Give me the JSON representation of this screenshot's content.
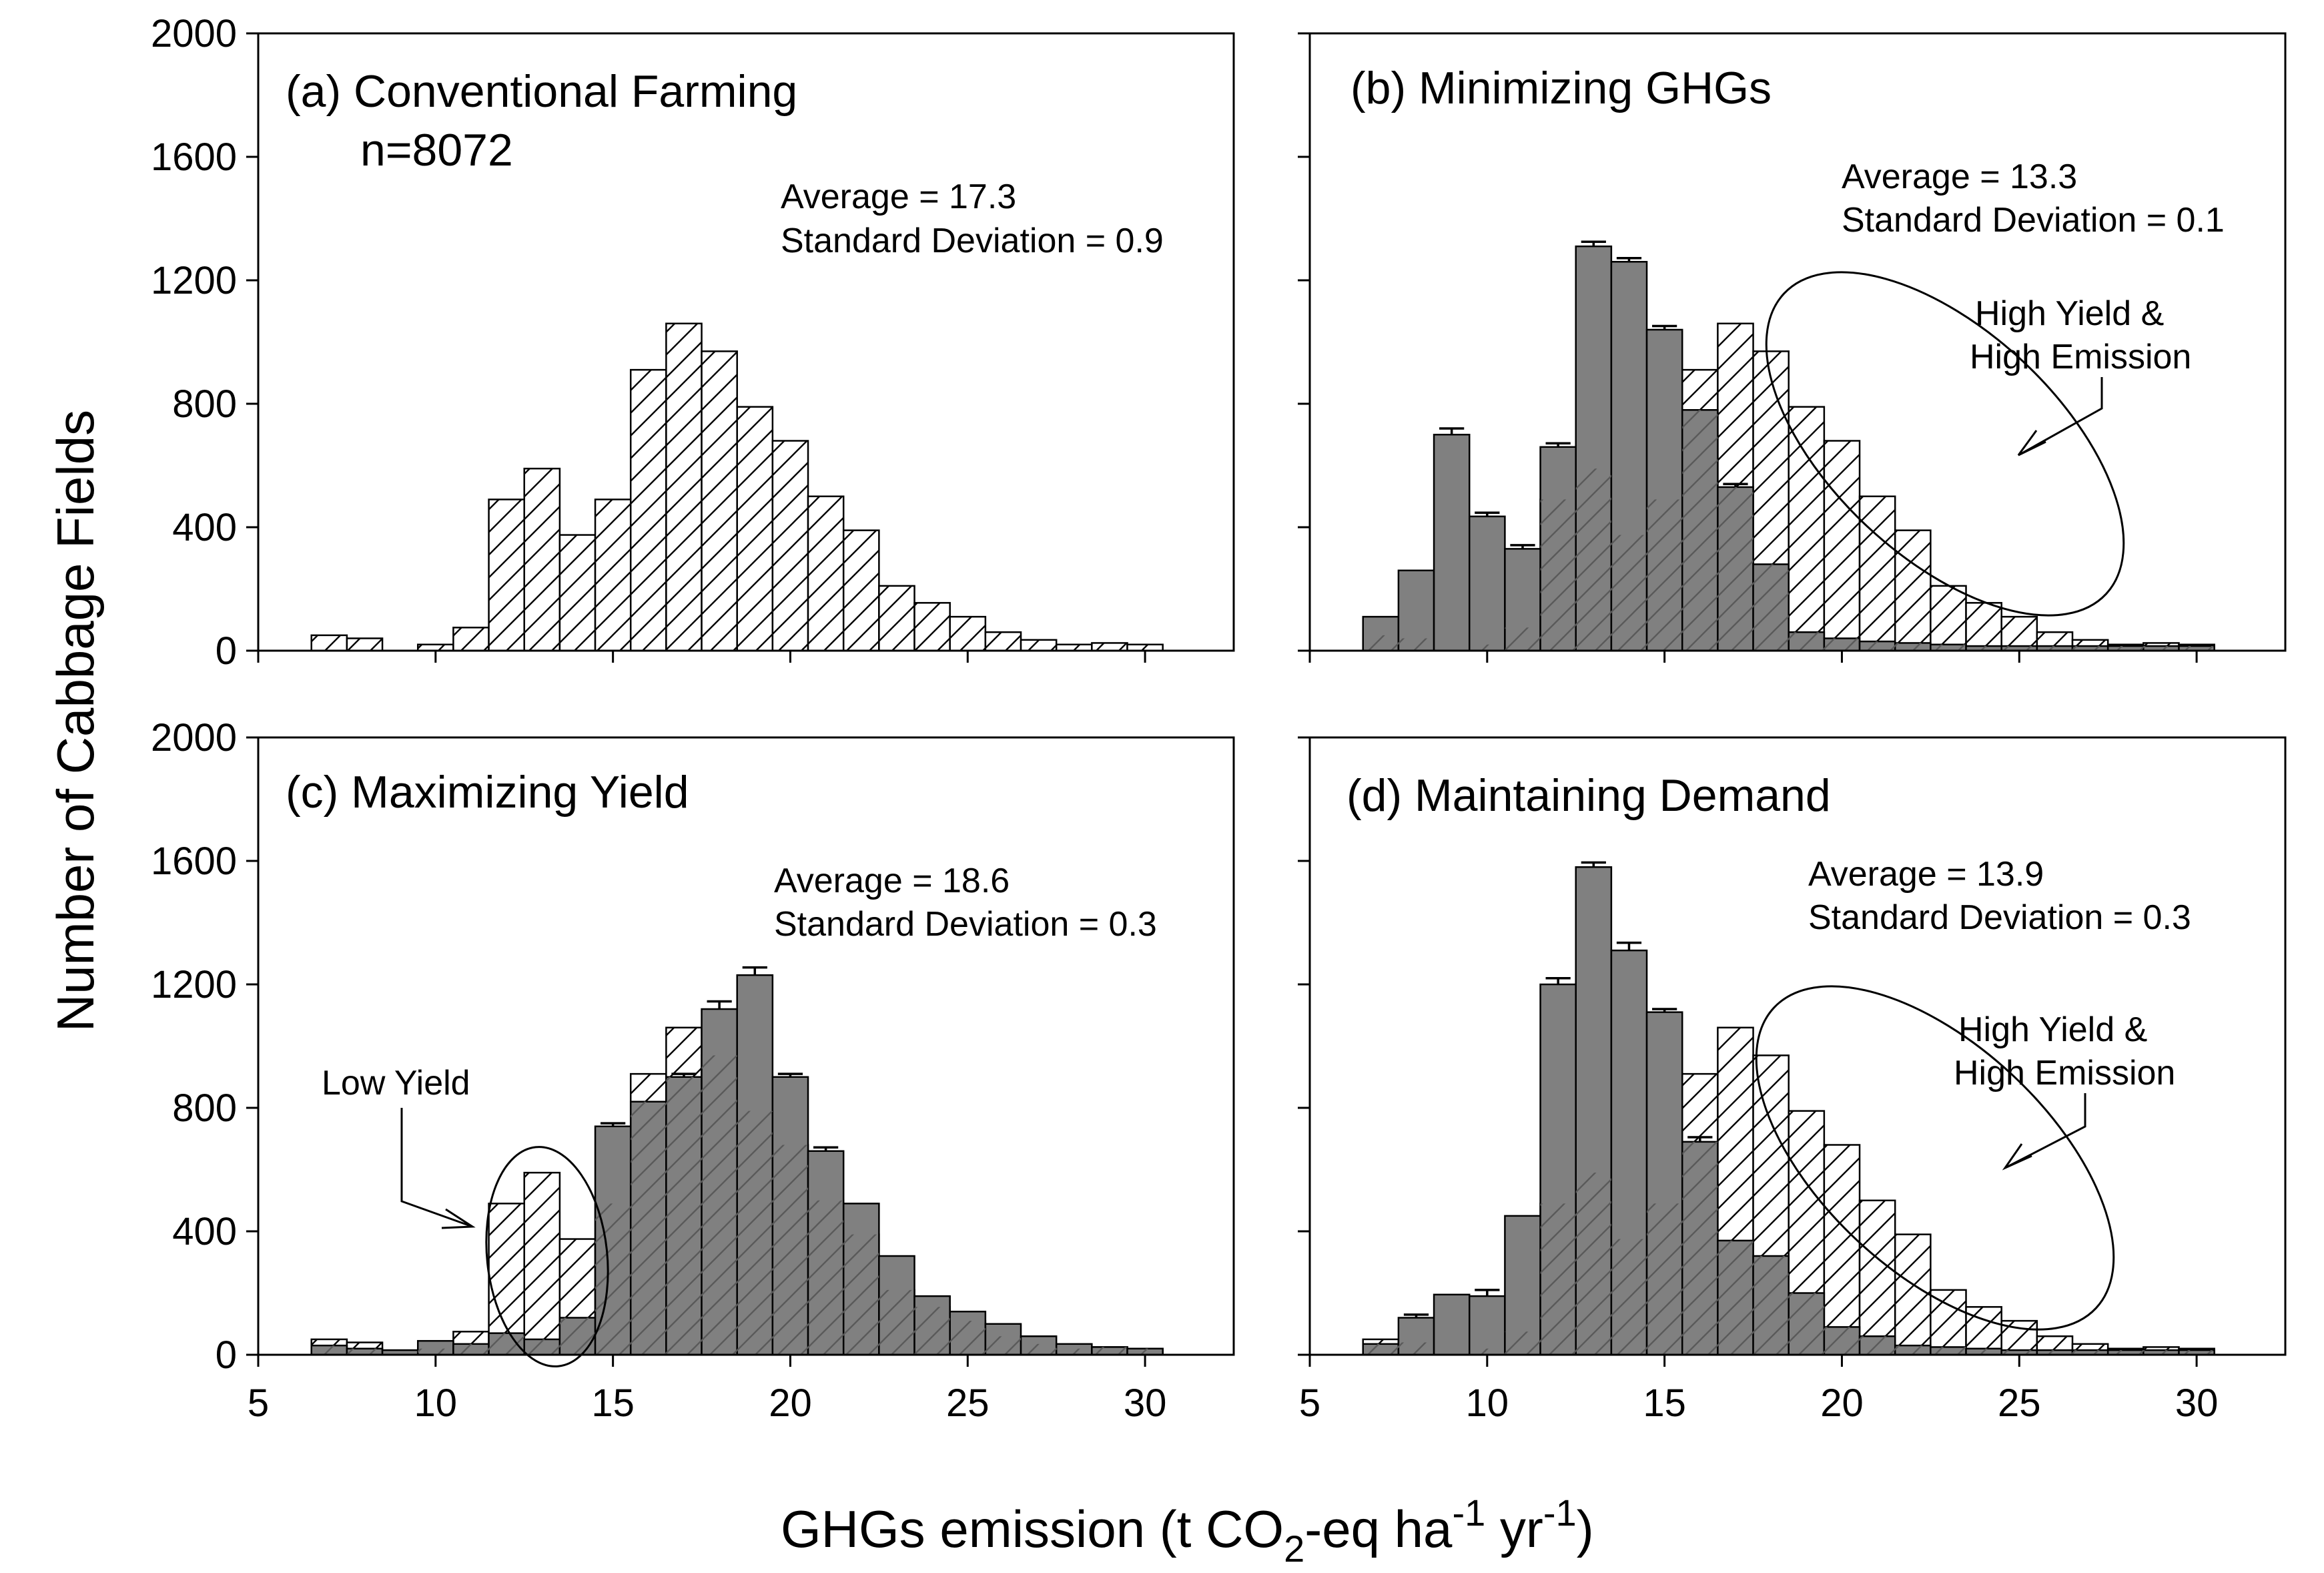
{
  "chart_data": [
    {
      "id": "a",
      "type": "bar",
      "title": "(a) Conventional Farming",
      "subtitle": "n=8072",
      "stats": [
        "Average = 17.3",
        "Standard Deviation = 0.9"
      ],
      "bin_width": 1,
      "x": [
        7,
        8,
        9,
        10,
        11,
        12,
        13,
        14,
        15,
        16,
        17,
        18,
        19,
        20,
        21,
        22,
        23,
        24,
        25,
        26,
        27,
        28,
        29,
        30
      ],
      "series": [
        {
          "name": "Conventional",
          "style": "hatched",
          "values": [
            50,
            40,
            0,
            20,
            75,
            490,
            590,
            375,
            490,
            910,
            1060,
            970,
            790,
            680,
            500,
            390,
            210,
            155,
            110,
            60,
            35,
            20,
            25,
            20
          ]
        }
      ],
      "xlim": [
        5,
        32.5
      ],
      "ylim": [
        0,
        2000
      ],
      "xticks": [
        5,
        10,
        15,
        20,
        25,
        30
      ],
      "yticks": [
        0,
        400,
        800,
        1200,
        1600,
        2000
      ]
    },
    {
      "id": "b",
      "type": "bar",
      "title": "(b) Minimizing GHGs",
      "stats": [
        "Average = 13.3",
        "Standard Deviation = 0.1"
      ],
      "annotation": [
        "High Yield &",
        "High Emission"
      ],
      "bin_width": 1,
      "x": [
        7,
        8,
        9,
        10,
        11,
        12,
        13,
        14,
        15,
        16,
        17,
        18,
        19,
        20,
        21,
        22,
        23,
        24,
        25,
        26,
        27,
        28,
        29,
        30
      ],
      "series": [
        {
          "name": "Conventional",
          "style": "hatched",
          "values": [
            50,
            40,
            0,
            20,
            75,
            490,
            590,
            375,
            490,
            910,
            1060,
            970,
            790,
            680,
            500,
            390,
            210,
            155,
            110,
            60,
            35,
            20,
            25,
            20
          ]
        },
        {
          "name": "Minimizing GHGs",
          "style": "gray",
          "values": [
            110,
            260,
            700,
            435,
            330,
            660,
            1310,
            1260,
            1040,
            780,
            530,
            280,
            60,
            40,
            30,
            25,
            20,
            15,
            15,
            15,
            15,
            15,
            15,
            15
          ]
        }
      ],
      "error_bars": [
        0,
        0,
        20,
        12,
        12,
        12,
        15,
        12,
        12,
        0,
        10,
        0,
        0,
        0,
        0,
        0,
        0,
        0,
        0,
        0,
        0,
        0,
        0,
        0
      ],
      "xlim": [
        5,
        32.5
      ],
      "ylim": [
        0,
        2000
      ],
      "xticks": [
        5,
        10,
        15,
        20,
        25,
        30
      ],
      "yticks": [
        0,
        400,
        800,
        1200,
        1600,
        2000
      ]
    },
    {
      "id": "c",
      "type": "bar",
      "title": "(c) Maximizing Yield",
      "stats": [
        "Average = 18.6",
        "Standard Deviation = 0.3"
      ],
      "annotation": [
        "Low Yield"
      ],
      "bin_width": 1,
      "x": [
        7,
        8,
        9,
        10,
        11,
        12,
        13,
        14,
        15,
        16,
        17,
        18,
        19,
        20,
        21,
        22,
        23,
        24,
        25,
        26,
        27,
        28,
        29,
        30
      ],
      "series": [
        {
          "name": "Conventional",
          "style": "hatched",
          "values": [
            50,
            40,
            0,
            20,
            75,
            490,
            590,
            375,
            490,
            910,
            1060,
            970,
            790,
            680,
            500,
            390,
            210,
            155,
            110,
            60,
            35,
            20,
            25,
            20
          ]
        },
        {
          "name": "Maximizing Yield",
          "style": "gray",
          "values": [
            30,
            20,
            15,
            45,
            35,
            70,
            50,
            120,
            740,
            820,
            900,
            1120,
            1230,
            900,
            660,
            490,
            320,
            190,
            140,
            100,
            60,
            35,
            25,
            20
          ]
        }
      ],
      "error_bars": [
        0,
        0,
        0,
        0,
        0,
        0,
        0,
        0,
        10,
        0,
        10,
        25,
        25,
        10,
        12,
        0,
        0,
        0,
        0,
        0,
        0,
        0,
        0,
        0
      ],
      "xlim": [
        5,
        32.5
      ],
      "ylim": [
        0,
        2000
      ],
      "xticks": [
        5,
        10,
        15,
        20,
        25,
        30
      ],
      "yticks": [
        0,
        400,
        800,
        1200,
        1600,
        2000
      ]
    },
    {
      "id": "d",
      "type": "bar",
      "title": "(d) Maintaining Demand",
      "stats": [
        "Average = 13.9",
        "Standard Deviation = 0.3"
      ],
      "annotation": [
        "High Yield &",
        "High Emission"
      ],
      "bin_width": 1,
      "x": [
        7,
        8,
        9,
        10,
        11,
        12,
        13,
        14,
        15,
        16,
        17,
        18,
        19,
        20,
        21,
        22,
        23,
        24,
        25,
        26,
        27,
        28,
        29,
        30
      ],
      "series": [
        {
          "name": "Conventional",
          "style": "hatched",
          "values": [
            50,
            40,
            0,
            20,
            75,
            490,
            590,
            375,
            490,
            910,
            1060,
            970,
            790,
            680,
            500,
            390,
            210,
            155,
            110,
            60,
            35,
            20,
            25,
            20
          ]
        },
        {
          "name": "Maintaining Demand",
          "style": "gray",
          "values": [
            35,
            120,
            195,
            190,
            450,
            1200,
            1580,
            1310,
            1110,
            690,
            370,
            320,
            200,
            90,
            60,
            30,
            25,
            20,
            15,
            15,
            15,
            15,
            15,
            15
          ]
        }
      ],
      "error_bars": [
        0,
        10,
        0,
        20,
        0,
        20,
        15,
        25,
        10,
        15,
        0,
        0,
        0,
        0,
        0,
        0,
        0,
        0,
        0,
        0,
        0,
        0,
        0,
        0
      ],
      "xlim": [
        5,
        32.5
      ],
      "ylim": [
        0,
        2000
      ],
      "xticks": [
        5,
        10,
        15,
        20,
        25,
        30
      ],
      "yticks": [
        0,
        400,
        800,
        1200,
        1600,
        2000
      ]
    }
  ],
  "shared": {
    "ylabel": "Number of Cabbage Fields",
    "xlabel": {
      "main": "GHGs emission (t CO",
      "sub1": "2",
      "mid": "-eq ha",
      "sup1": "-1",
      "mid2": " yr",
      "sup2": "-1",
      "end": ")"
    },
    "colors": {
      "gray": "#808080",
      "hatch_line": "#000000",
      "frame": "#000000"
    }
  }
}
